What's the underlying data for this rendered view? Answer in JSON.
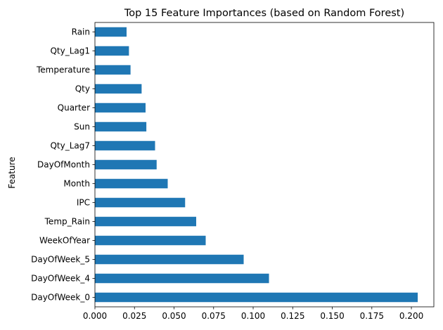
{
  "chart_data": {
    "type": "bar",
    "orientation": "horizontal",
    "title": "Top 15 Feature Importances (based on Random Forest)",
    "xlabel": "",
    "ylabel": "Feature",
    "categories": [
      "DayOfWeek_0",
      "DayOfWeek_4",
      "DayOfWeek_5",
      "WeekOfYear",
      "Temp_Rain",
      "IPC",
      "Month",
      "DayOfMonth",
      "Qty_Lag7",
      "Sun",
      "Quarter",
      "Qty",
      "Temperature",
      "Qty_Lag1",
      "Rain"
    ],
    "values": [
      0.204,
      0.11,
      0.094,
      0.07,
      0.064,
      0.057,
      0.046,
      0.039,
      0.038,
      0.0325,
      0.032,
      0.0295,
      0.0225,
      0.0215,
      0.02
    ],
    "xlim": [
      0,
      0.2142
    ],
    "xticks": [
      "0.000",
      "0.025",
      "0.050",
      "0.075",
      "0.100",
      "0.125",
      "0.150",
      "0.175",
      "0.200"
    ],
    "bar_color": "#1f77b4",
    "grid": false,
    "legend": "none"
  }
}
